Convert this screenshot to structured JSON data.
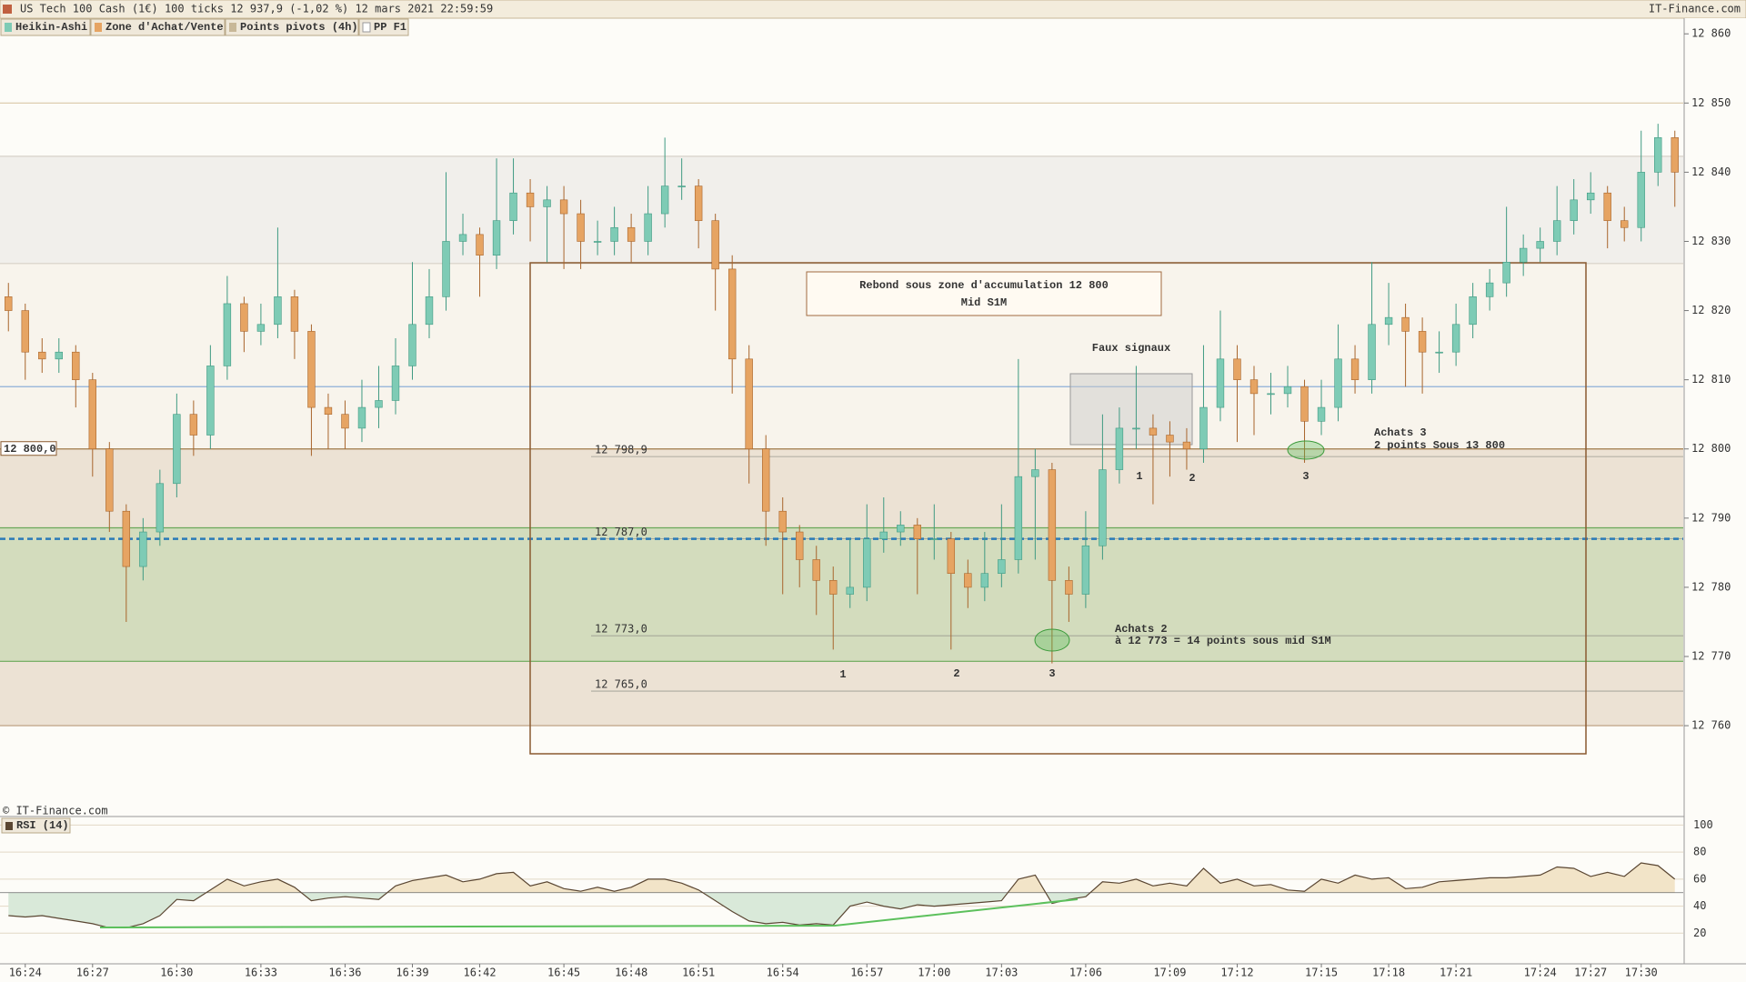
{
  "header": {
    "title": "US Tech 100 Cash (1€) 100 ticks 12 937,9 (-1,02 %) 12 mars 2021 22:59:59",
    "source": "IT-Finance.com",
    "tabs": [
      "Heikin-Ashi",
      "Zone d'Achat/Vente",
      "Points pivots (4h)",
      "PP F1"
    ],
    "copyright": "© IT-Finance.com"
  },
  "chart_data": [
    {
      "type": "candlestick",
      "categories": [
        null,
        "16:24",
        null,
        null,
        null,
        "16:27",
        null,
        null,
        null,
        null,
        "16:30",
        null,
        null,
        null,
        null,
        "16:33",
        null,
        null,
        null,
        null,
        "16:36",
        null,
        null,
        null,
        "16:39",
        null,
        null,
        null,
        "16:42",
        null,
        null,
        null,
        null,
        "16:45",
        null,
        null,
        null,
        "16:48",
        null,
        null,
        null,
        "16:51",
        null,
        null,
        null,
        null,
        "16:54",
        null,
        null,
        null,
        null,
        "16:57",
        null,
        null,
        null,
        "17:00",
        null,
        null,
        null,
        "17:03",
        null,
        null,
        null,
        null,
        "17:06",
        null,
        null,
        null,
        null,
        "17:09",
        null,
        null,
        null,
        "17:12",
        null,
        null,
        null,
        null,
        "17:15",
        null,
        null,
        null,
        "17:18",
        null,
        null,
        null,
        "17:21",
        null,
        null,
        null,
        null,
        "17:24",
        null,
        null,
        "17:27",
        null,
        null,
        "17:30",
        null,
        null
      ],
      "ohlc": [
        [
          12822,
          12824,
          12817,
          12820
        ],
        [
          12820,
          12821,
          12810,
          12814
        ],
        [
          12814,
          12816,
          12811,
          12813
        ],
        [
          12813,
          12816,
          12811,
          12814
        ],
        [
          12814,
          12815,
          12806,
          12810
        ],
        [
          12810,
          12811,
          12796,
          12800
        ],
        [
          12800,
          12801,
          12788,
          12791
        ],
        [
          12791,
          12792,
          12775,
          12783
        ],
        [
          12783,
          12790,
          12781,
          12788
        ],
        [
          12788,
          12797,
          12786,
          12795
        ],
        [
          12795,
          12808,
          12793,
          12805
        ],
        [
          12805,
          12807,
          12799,
          12802
        ],
        [
          12802,
          12815,
          12800,
          12812
        ],
        [
          12812,
          12825,
          12810,
          12821
        ],
        [
          12821,
          12822,
          12814,
          12817
        ],
        [
          12817,
          12821,
          12815,
          12818
        ],
        [
          12818,
          12832,
          12816,
          12822
        ],
        [
          12822,
          12823,
          12813,
          12817
        ],
        [
          12817,
          12818,
          12799,
          12806
        ],
        [
          12806,
          12808,
          12800,
          12805
        ],
        [
          12805,
          12807,
          12800,
          12803
        ],
        [
          12803,
          12810,
          12801,
          12806
        ],
        [
          12806,
          12812,
          12803,
          12807
        ],
        [
          12807,
          12816,
          12805,
          12812
        ],
        [
          12812,
          12827,
          12810,
          12818
        ],
        [
          12818,
          12826,
          12816,
          12822
        ],
        [
          12822,
          12840,
          12820,
          12830
        ],
        [
          12830,
          12834,
          12828,
          12831
        ],
        [
          12831,
          12832,
          12822,
          12828
        ],
        [
          12828,
          12842,
          12826,
          12833
        ],
        [
          12833,
          12842,
          12831,
          12837
        ],
        [
          12837,
          12839,
          12830,
          12835
        ],
        [
          12835,
          12838,
          12827,
          12836
        ],
        [
          12836,
          12838,
          12826,
          12834
        ],
        [
          12834,
          12836,
          12826,
          12830
        ],
        [
          12830,
          12833,
          12828,
          12830
        ],
        [
          12830,
          12835,
          12828,
          12832
        ],
        [
          12832,
          12834,
          12827,
          12830
        ],
        [
          12830,
          12838,
          12828,
          12834
        ],
        [
          12834,
          12845,
          12832,
          12838
        ],
        [
          12838,
          12842,
          12836,
          12838
        ],
        [
          12838,
          12839,
          12829,
          12833
        ],
        [
          12833,
          12834,
          12820,
          12826
        ],
        [
          12826,
          12828,
          12808,
          12813
        ],
        [
          12813,
          12815,
          12795,
          12800
        ],
        [
          12800,
          12802,
          12786,
          12791
        ],
        [
          12791,
          12793,
          12779,
          12788
        ],
        [
          12788,
          12789,
          12780,
          12784
        ],
        [
          12784,
          12786,
          12776,
          12781
        ],
        [
          12781,
          12783,
          12771,
          12779
        ],
        [
          12779,
          12787,
          12777,
          12780
        ],
        [
          12780,
          12792,
          12778,
          12787
        ],
        [
          12787,
          12793,
          12785,
          12788
        ],
        [
          12788,
          12791,
          12786,
          12789
        ],
        [
          12789,
          12790,
          12779,
          12787
        ],
        [
          12787,
          12792,
          12784,
          12787
        ],
        [
          12787,
          12788,
          12771,
          12782
        ],
        [
          12782,
          12784,
          12777,
          12780
        ],
        [
          12780,
          12788,
          12778,
          12782
        ],
        [
          12782,
          12792,
          12780,
          12784
        ],
        [
          12784,
          12813,
          12782,
          12796
        ],
        [
          12796,
          12800,
          12784,
          12797
        ],
        [
          12797,
          12798,
          12769,
          12781
        ],
        [
          12781,
          12783,
          12775,
          12779
        ],
        [
          12779,
          12791,
          12777,
          12786
        ],
        [
          12786,
          12805,
          12784,
          12797
        ],
        [
          12797,
          12806,
          12795,
          12803
        ],
        [
          12803,
          12812,
          12800,
          12803
        ],
        [
          12803,
          12805,
          12792,
          12802
        ],
        [
          12802,
          12804,
          12796,
          12801
        ],
        [
          12801,
          12803,
          12797,
          12800
        ],
        [
          12800,
          12815,
          12798,
          12806
        ],
        [
          12806,
          12820,
          12804,
          12813
        ],
        [
          12813,
          12815,
          12801,
          12810
        ],
        [
          12810,
          12812,
          12802,
          12808
        ],
        [
          12808,
          12811,
          12805,
          12808
        ],
        [
          12808,
          12812,
          12806,
          12809
        ],
        [
          12809,
          12810,
          12798,
          12804
        ],
        [
          12804,
          12810,
          12802,
          12806
        ],
        [
          12806,
          12818,
          12804,
          12813
        ],
        [
          12813,
          12815,
          12808,
          12810
        ],
        [
          12810,
          12827,
          12808,
          12818
        ],
        [
          12818,
          12824,
          12815,
          12819
        ],
        [
          12819,
          12821,
          12809,
          12817
        ],
        [
          12817,
          12819,
          12808,
          12814
        ],
        [
          12814,
          12817,
          12811,
          12814
        ],
        [
          12814,
          12821,
          12812,
          12818
        ],
        [
          12818,
          12824,
          12816,
          12822
        ],
        [
          12822,
          12826,
          12820,
          12824
        ],
        [
          12824,
          12835,
          12822,
          12827
        ],
        [
          12827,
          12831,
          12825,
          12829
        ],
        [
          12829,
          12832,
          12827,
          12830
        ],
        [
          12830,
          12838,
          12828,
          12833
        ],
        [
          12833,
          12839,
          12831,
          12836
        ],
        [
          12836,
          12840,
          12834,
          12837
        ],
        [
          12837,
          12838,
          12829,
          12833
        ],
        [
          12833,
          12835,
          12830,
          12832
        ],
        [
          12832,
          12846,
          12830,
          12840
        ],
        [
          12840,
          12847,
          12838,
          12845
        ],
        [
          12845,
          12846,
          12835,
          12840
        ]
      ],
      "up_color": "#7ecbb5",
      "down_color": "#e6a463",
      "ylim": [
        12747,
        12862
      ],
      "yticks": [
        {
          "value": 12760,
          "label": "12 760"
        },
        {
          "value": 12770,
          "label": "12 770"
        },
        {
          "value": 12780,
          "label": "12 780"
        },
        {
          "value": 12790,
          "label": "12 790"
        },
        {
          "value": 12800,
          "label": "12 800"
        },
        {
          "value": 12810,
          "label": "12 810"
        },
        {
          "value": 12820,
          "label": "12 820"
        },
        {
          "value": 12830,
          "label": "12 830"
        },
        {
          "value": 12840,
          "label": "12 840"
        },
        {
          "value": 12850,
          "label": "12 850"
        },
        {
          "value": 12860,
          "label": "12 860"
        }
      ],
      "zones": [
        {
          "from": 12826.8,
          "to": 12800,
          "color": "#f8f4ec"
        },
        {
          "from": 12842.3,
          "to": 12826.8,
          "color": "#f1efeb"
        },
        {
          "from": 12800,
          "to": 12760,
          "color": "#ece2d4"
        },
        {
          "from": 12788.6,
          "to": 12769.3,
          "color": "#d3dcbd"
        }
      ],
      "lines": [
        {
          "value": 12850,
          "color": "#d9c8a8"
        },
        {
          "value": 12842.3,
          "color": "#d8d2c8"
        },
        {
          "value": 12826.8,
          "color": "#d8d2c8"
        },
        {
          "value": 12809,
          "color": "#8fb0d8"
        },
        {
          "value": 12800,
          "color": "#a07a4a"
        },
        {
          "value": 12788.6,
          "color": "#6aa85a"
        },
        {
          "value": 12769.3,
          "color": "#6aa85a"
        },
        {
          "value": 12760,
          "color": "#b89a7a"
        }
      ],
      "mid_line": {
        "value": 12787,
        "color": "#2a7ab8"
      },
      "levels": [
        {
          "value": 12798.9,
          "label": "12 798,9"
        },
        {
          "value": 12787.0,
          "label": "12 787,0"
        },
        {
          "value": 12773.0,
          "label": "12 773,0"
        },
        {
          "value": 12765.0,
          "label": "12 765,0"
        }
      ],
      "price_tag": {
        "value": 12800,
        "label": "12 800,0"
      },
      "annotations": {
        "title_box": [
          "Rebond sous zone d'accumulation 12 800",
          "Mid S1M"
        ],
        "false_signals": "Faux signaux",
        "buy2": [
          "Achats 2",
          "à 12 773 = 14 points sous mid S1M"
        ],
        "buy3": [
          "Achats 3",
          "2 points Sous 13 800"
        ],
        "counts_a": [
          "1",
          "2",
          "3"
        ],
        "counts_b": [
          "1",
          "2",
          "3"
        ]
      }
    },
    {
      "type": "line",
      "title": "RSI (14)",
      "color": "#5a4632",
      "values": [
        33,
        32,
        33,
        31,
        29,
        27,
        24,
        24,
        27,
        33,
        45,
        44,
        52,
        60,
        55,
        58,
        60,
        54,
        44,
        46,
        47,
        46,
        45,
        55,
        59,
        61,
        63,
        58,
        60,
        64,
        65,
        55,
        58,
        53,
        51,
        54,
        51,
        54,
        60,
        60,
        57,
        52,
        44,
        36,
        29,
        27,
        28,
        26,
        27,
        26,
        40,
        43,
        40,
        38,
        41,
        40,
        41,
        42,
        43,
        44,
        60,
        63,
        42,
        45,
        47,
        58,
        57,
        60,
        55,
        57,
        55,
        68,
        57,
        60,
        55,
        56,
        52,
        51,
        60,
        57,
        63,
        60,
        61,
        53,
        54,
        58,
        59,
        60,
        61,
        61,
        62,
        63,
        69,
        68,
        62,
        65,
        62,
        72,
        70,
        60
      ],
      "ylim": [
        -2,
        105
      ],
      "yticks": [
        20,
        40,
        60,
        80,
        100
      ],
      "fill_base": 50,
      "fill_above": "#f2e4c8",
      "fill_below": "#d9e9d9"
    }
  ]
}
